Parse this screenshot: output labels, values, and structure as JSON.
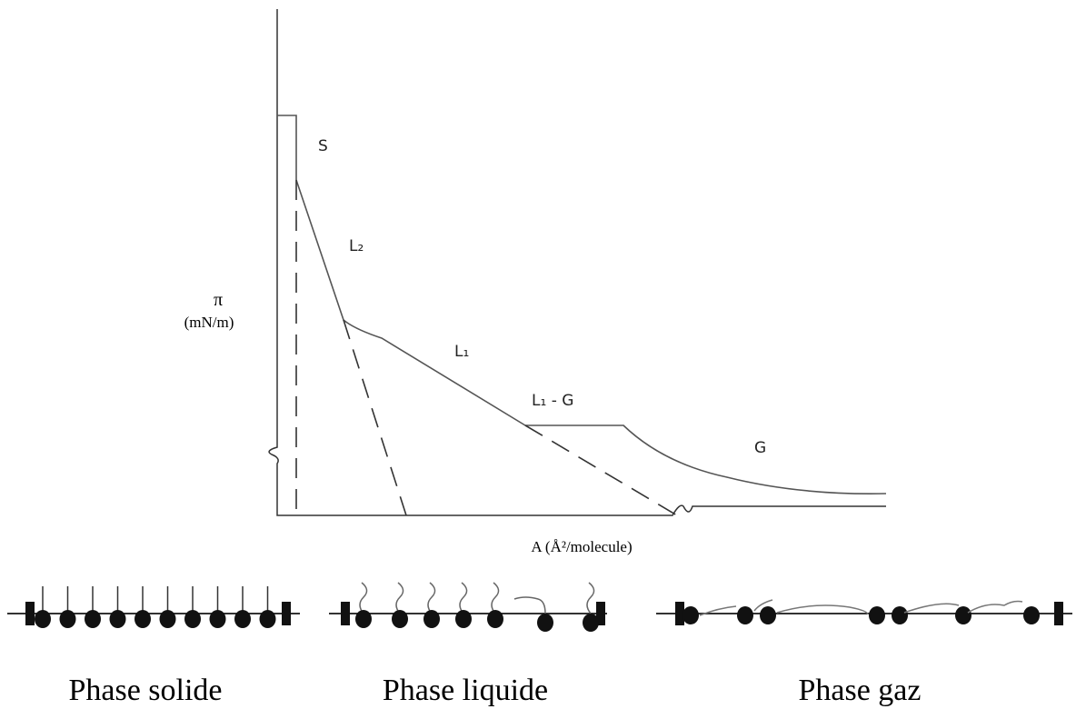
{
  "isotherm": {
    "regions": {
      "solid": "S",
      "liquid_condensed": "L₂",
      "liquid_expanded": "L₁",
      "coexistence": "L₁ - G",
      "gas": "G"
    },
    "y_axis_symbol": "π",
    "y_axis_unit": "(mN/m)",
    "x_axis_label": "A (Å²/molecule)"
  },
  "phases": [
    "Phase solide",
    "Phase liquide",
    "Phase gaz"
  ]
}
